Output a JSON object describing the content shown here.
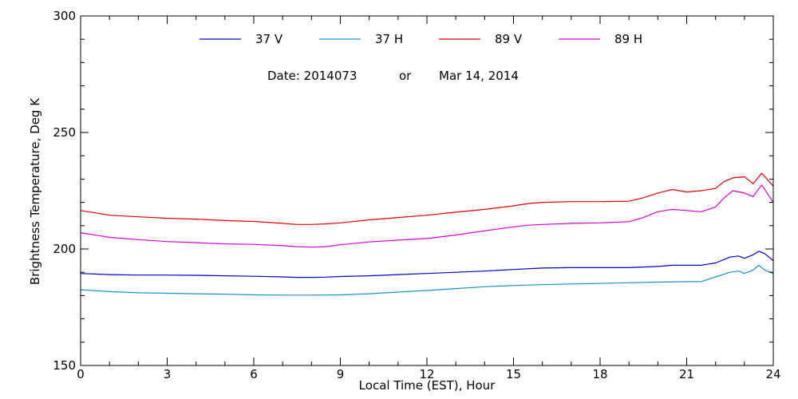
{
  "chart_data": {
    "type": "line",
    "title": "",
    "annotation": {
      "date_label": "Date: 2014073",
      "or_label": "or",
      "date_text": "Mar 14, 2014"
    },
    "xlabel": "Local Time (EST), Hour",
    "ylabel": "Brightness Temperature, Deg K",
    "xlim": [
      0,
      24
    ],
    "ylim": [
      150,
      300
    ],
    "xticks": [
      0,
      3,
      6,
      9,
      12,
      15,
      18,
      21,
      24
    ],
    "xtick_labels": [
      "0",
      "3",
      "6",
      "9",
      "12",
      "15",
      "18",
      "21",
      "24"
    ],
    "yticks": [
      150,
      200,
      250,
      300
    ],
    "ytick_labels": [
      "150",
      "200",
      "250",
      "300"
    ],
    "grid": false,
    "legend_position": "top",
    "series": [
      {
        "name": "37 V",
        "color": "#0000c8",
        "x": [
          0,
          1,
          2,
          3,
          4,
          5,
          6,
          7,
          7.5,
          8,
          8.5,
          9,
          10,
          11,
          12,
          13,
          14,
          15,
          16,
          17,
          18,
          19,
          20,
          20.5,
          21,
          21.5,
          22,
          22.5,
          22.8,
          23,
          23.3,
          23.5,
          23.7,
          24
        ],
        "y": [
          189.5,
          189,
          188.8,
          188.8,
          188.7,
          188.5,
          188.3,
          188,
          187.8,
          187.8,
          187.9,
          188.2,
          188.5,
          189,
          189.5,
          190,
          190.5,
          191.2,
          191.8,
          192,
          192,
          192,
          192.5,
          193,
          193,
          193,
          194,
          196.5,
          197,
          196,
          197.5,
          199,
          198,
          195
        ]
      },
      {
        "name": "37 H",
        "color": "#1e90c8",
        "x": [
          0,
          1,
          2,
          3,
          4,
          5,
          6,
          7,
          8,
          9,
          10,
          11,
          12,
          13,
          14,
          15,
          16,
          17,
          18,
          19,
          20,
          21,
          21.5,
          22,
          22.5,
          22.8,
          23,
          23.3,
          23.5,
          23.7,
          24
        ],
        "y": [
          182.5,
          181.7,
          181.2,
          181,
          180.8,
          180.6,
          180.3,
          180.2,
          180.2,
          180.3,
          180.8,
          181.5,
          182.2,
          183,
          183.8,
          184.3,
          184.7,
          185,
          185.2,
          185.5,
          185.8,
          186,
          186,
          188,
          190,
          190.5,
          189.5,
          191,
          193,
          191,
          189.5
        ]
      },
      {
        "name": "89 V",
        "color": "#e00000",
        "x": [
          0,
          1,
          2,
          3,
          4,
          5,
          6,
          7,
          7.5,
          8,
          8.5,
          9,
          10,
          11,
          12,
          13,
          14,
          15,
          15.5,
          16,
          17,
          18,
          19,
          19.5,
          20,
          20.5,
          21,
          21.5,
          22,
          22.3,
          22.6,
          23,
          23.3,
          23.6,
          24
        ],
        "y": [
          216.5,
          214.5,
          213.8,
          213.2,
          212.8,
          212.2,
          211.8,
          211,
          210.5,
          210.5,
          210.8,
          211.2,
          212.5,
          213.5,
          214.5,
          215.8,
          217,
          218.5,
          219.5,
          220,
          220.3,
          220.3,
          220.5,
          222,
          224,
          225.5,
          224.5,
          225,
          226,
          229,
          230.5,
          231,
          228,
          232.5,
          227
        ]
      },
      {
        "name": "89 H",
        "color": "#d400d4",
        "x": [
          0,
          1,
          2,
          3,
          4,
          5,
          6,
          7,
          7.5,
          8,
          8.5,
          9,
          10,
          11,
          12,
          13,
          14,
          15,
          15.5,
          16,
          17,
          18,
          19,
          19.5,
          20,
          20.5,
          21,
          21.5,
          22,
          22.3,
          22.6,
          23,
          23.3,
          23.6,
          24
        ],
        "y": [
          207,
          205,
          204,
          203.2,
          202.7,
          202.2,
          202,
          201.4,
          201,
          200.8,
          201,
          201.8,
          203,
          203.8,
          204.5,
          206,
          207.8,
          209.5,
          210.2,
          210.5,
          211,
          211.2,
          211.7,
          213.5,
          216,
          217,
          216.5,
          216,
          218,
          222,
          225,
          224,
          222.5,
          227.5,
          220
        ]
      }
    ]
  }
}
